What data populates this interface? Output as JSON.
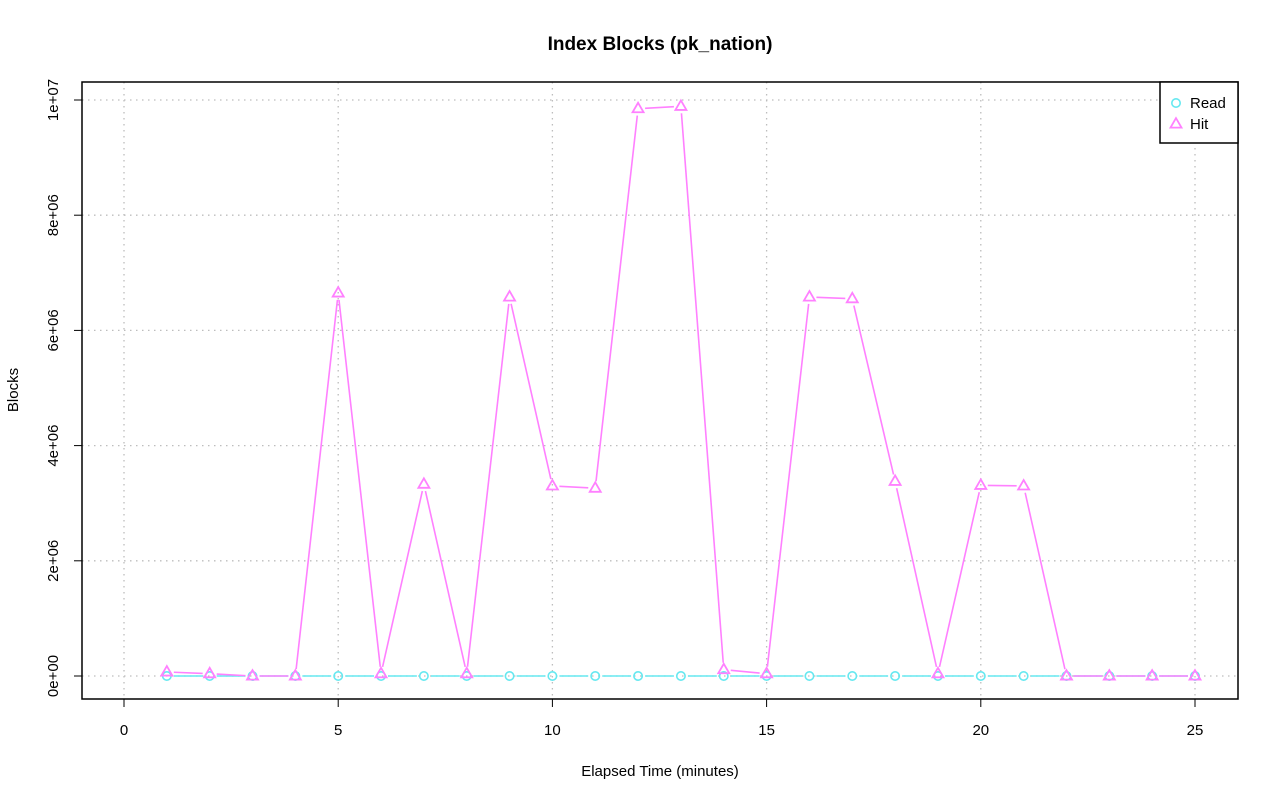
{
  "chart_data": {
    "type": "line",
    "title": "Index Blocks (pk_nation)",
    "xlabel": "Elapsed Time (minutes)",
    "ylabel": "Blocks",
    "xlim": [
      0,
      25
    ],
    "ylim": [
      0,
      10000000
    ],
    "x_ticks": [
      0,
      5,
      10,
      15,
      20,
      25
    ],
    "x_tick_labels": [
      "0",
      "5",
      "10",
      "15",
      "20",
      "25"
    ],
    "y_ticks": [
      0,
      2000000,
      4000000,
      6000000,
      8000000,
      10000000
    ],
    "y_tick_labels": [
      "0e+00",
      "2e+06",
      "4e+06",
      "6e+06",
      "8e+06",
      "1e+07"
    ],
    "grid": true,
    "legend_position": "top-right",
    "x": [
      1,
      2,
      3,
      4,
      5,
      6,
      7,
      8,
      9,
      10,
      11,
      12,
      13,
      14,
      15,
      16,
      17,
      18,
      19,
      20,
      21,
      22,
      23,
      24,
      25
    ],
    "series": [
      {
        "name": "Read",
        "color": "#66e8f0",
        "marker": "circle",
        "values": [
          0,
          0,
          0,
          0,
          0,
          0,
          0,
          0,
          0,
          0,
          0,
          0,
          0,
          0,
          0,
          0,
          0,
          0,
          0,
          0,
          0,
          0,
          0,
          0,
          0
        ]
      },
      {
        "name": "Hit",
        "color": "#ff80ff",
        "marker": "triangle",
        "values": [
          70000,
          40000,
          0,
          0,
          6650000,
          40000,
          3330000,
          40000,
          6580000,
          3300000,
          3260000,
          9850000,
          9890000,
          110000,
          40000,
          6580000,
          6550000,
          3380000,
          40000,
          3310000,
          3300000,
          0,
          0,
          0,
          0
        ]
      }
    ]
  }
}
